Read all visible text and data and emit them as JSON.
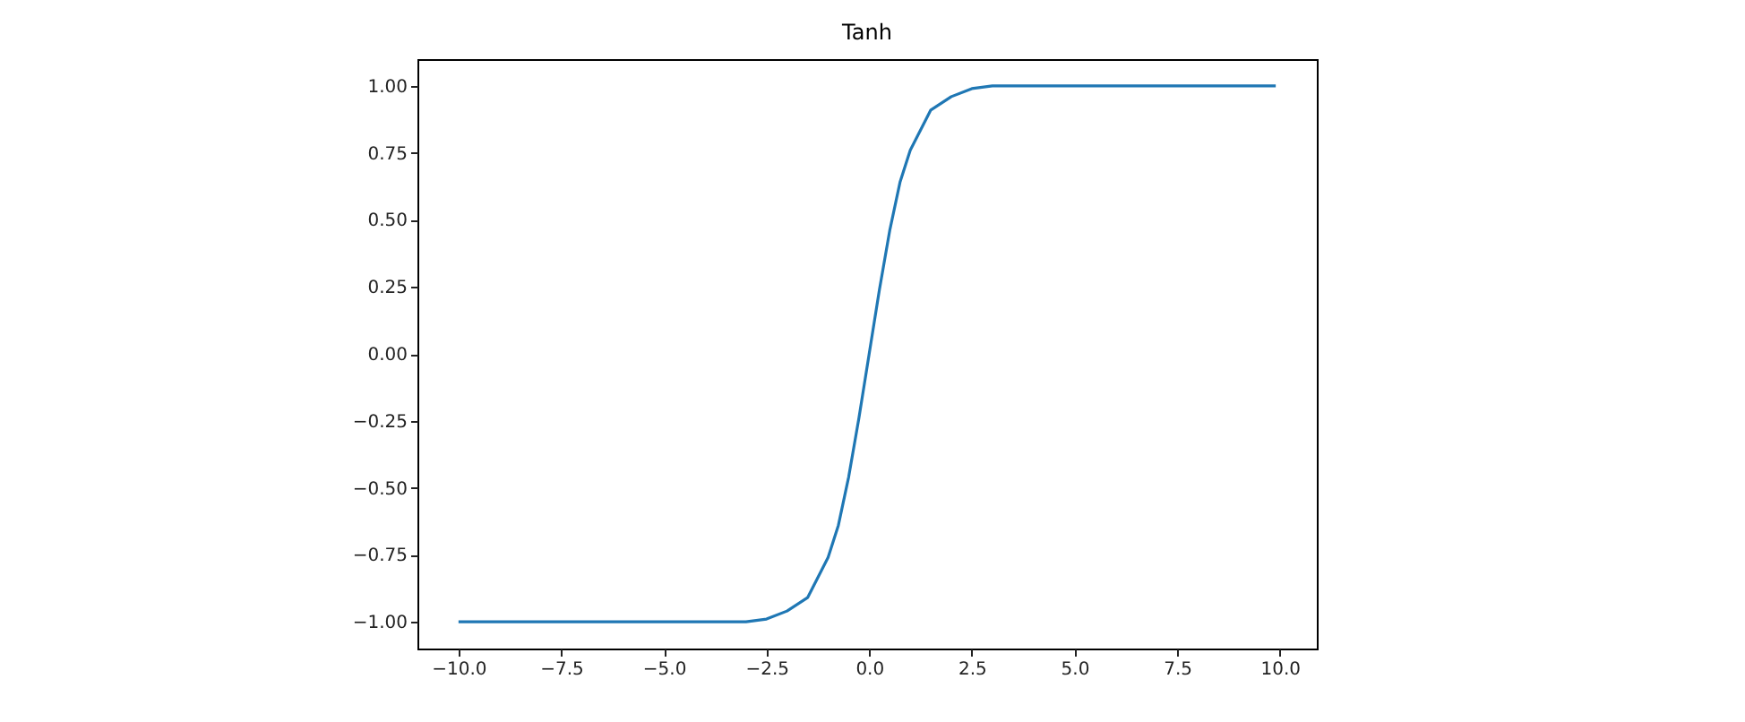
{
  "chart_data": {
    "type": "line",
    "title": "Tanh",
    "x": [
      -10,
      -5,
      -4,
      -3,
      -2.5,
      -2,
      -1.5,
      -1,
      -0.75,
      -0.5,
      -0.25,
      0,
      0.25,
      0.5,
      0.75,
      1,
      1.5,
      2,
      2.5,
      3,
      4,
      5,
      9.9
    ],
    "series": [
      {
        "color": "#1f77b4",
        "values": [
          -1,
          -1,
          -1,
          -1,
          -0.99,
          -0.96,
          -0.91,
          -0.76,
          -0.64,
          -0.46,
          -0.24,
          0,
          0.24,
          0.46,
          0.64,
          0.76,
          0.91,
          0.96,
          0.99,
          1,
          1,
          1,
          1
        ]
      }
    ],
    "xlim": [
      -11,
      10.9
    ],
    "xticks": [
      {
        "value": -10,
        "label": "−10.0"
      },
      {
        "value": -7.5,
        "label": "−7.5"
      },
      {
        "value": -5,
        "label": "−5.0"
      },
      {
        "value": -2.5,
        "label": "−2.5"
      },
      {
        "value": 0,
        "label": "0.0"
      },
      {
        "value": 2.5,
        "label": "2.5"
      },
      {
        "value": 5,
        "label": "5.0"
      },
      {
        "value": 7.5,
        "label": "7.5"
      },
      {
        "value": 10,
        "label": "10.0"
      }
    ],
    "ylim": [
      -1.1,
      1.1
    ],
    "yticks": [
      {
        "value": -1,
        "label": "−1.00"
      },
      {
        "value": -0.75,
        "label": "−0.75"
      },
      {
        "value": -0.5,
        "label": "−0.50"
      },
      {
        "value": -0.25,
        "label": "−0.25"
      },
      {
        "value": 0,
        "label": "0.00"
      },
      {
        "value": 0.25,
        "label": "0.25"
      },
      {
        "value": 0.5,
        "label": "0.50"
      },
      {
        "value": 0.75,
        "label": "0.75"
      },
      {
        "value": 1,
        "label": "1.00"
      }
    ],
    "grid": false
  }
}
